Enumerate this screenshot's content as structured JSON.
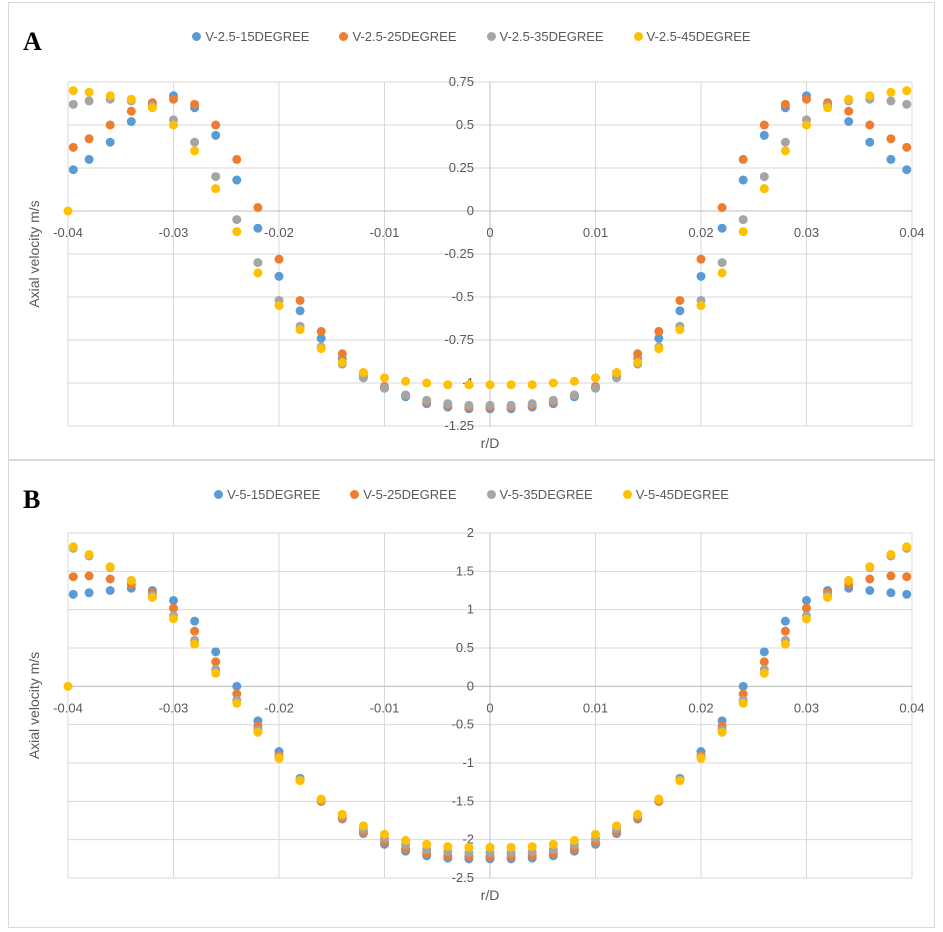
{
  "chart_data": [
    {
      "type": "scatter",
      "panel_label": "A",
      "xlabel": "r/D",
      "ylabel": "Axial velocity m/s",
      "xlim": [
        -0.04,
        0.04
      ],
      "ylim": [
        -1.25,
        0.75
      ],
      "xticks": [
        "-0.04",
        "-0.03",
        "-0.02",
        "-0.01",
        "0",
        "0.01",
        "0.02",
        "0.03",
        "0.04"
      ],
      "yticks": [
        "0.75",
        "0.5",
        "0.25",
        "0",
        "-0.25",
        "-0.5",
        "-0.75",
        "-1",
        "-1.25"
      ],
      "grid": true,
      "legend_position": "top",
      "series": [
        {
          "name": "V-2.5-15DEGREE",
          "color": "#5B9BD5",
          "x": [
            -0.0395,
            -0.038,
            -0.036,
            -0.034,
            -0.032,
            -0.03,
            -0.028,
            -0.026,
            -0.024,
            -0.022,
            -0.02,
            -0.018,
            -0.016,
            -0.014,
            -0.012,
            -0.01,
            -0.008,
            -0.006,
            -0.004,
            -0.002,
            0,
            0.002,
            0.004,
            0.006,
            0.008,
            0.01,
            0.012,
            0.014,
            0.016,
            0.018,
            0.02,
            0.022,
            0.024,
            0.026,
            0.028,
            0.03,
            0.032,
            0.034,
            0.036,
            0.038,
            0.0395
          ],
          "y": [
            0.24,
            0.3,
            0.4,
            0.52,
            0.62,
            0.67,
            0.6,
            0.44,
            0.18,
            -0.1,
            -0.38,
            -0.58,
            -0.74,
            -0.86,
            -0.96,
            -1.03,
            -1.08,
            -1.12,
            -1.14,
            -1.15,
            -1.15,
            -1.15,
            -1.14,
            -1.12,
            -1.08,
            -1.03,
            -0.96,
            -0.86,
            -0.74,
            -0.58,
            -0.38,
            -0.1,
            0.18,
            0.44,
            0.6,
            0.67,
            0.62,
            0.52,
            0.4,
            0.3,
            0.24
          ]
        },
        {
          "name": "V-2.5-25DEGREE",
          "color": "#ED7D31",
          "x": [
            -0.0395,
            -0.038,
            -0.036,
            -0.034,
            -0.032,
            -0.03,
            -0.028,
            -0.026,
            -0.024,
            -0.022,
            -0.02,
            -0.018,
            -0.016,
            -0.014,
            -0.012,
            -0.01,
            -0.008,
            -0.006,
            -0.004,
            -0.002,
            0,
            0.002,
            0.004,
            0.006,
            0.008,
            0.01,
            0.012,
            0.014,
            0.016,
            0.018,
            0.02,
            0.022,
            0.024,
            0.026,
            0.028,
            0.03,
            0.032,
            0.034,
            0.036,
            0.038,
            0.0395
          ],
          "y": [
            0.37,
            0.42,
            0.5,
            0.58,
            0.63,
            0.65,
            0.62,
            0.5,
            0.3,
            0.02,
            -0.28,
            -0.52,
            -0.7,
            -0.83,
            -0.94,
            -1.02,
            -1.07,
            -1.11,
            -1.13,
            -1.14,
            -1.14,
            -1.14,
            -1.13,
            -1.11,
            -1.07,
            -1.02,
            -0.94,
            -0.83,
            -0.7,
            -0.52,
            -0.28,
            0.02,
            0.3,
            0.5,
            0.62,
            0.65,
            0.63,
            0.58,
            0.5,
            0.42,
            0.37
          ]
        },
        {
          "name": "V-2.5-35DEGREE",
          "color": "#A5A5A5",
          "x": [
            -0.0395,
            -0.038,
            -0.036,
            -0.034,
            -0.032,
            -0.03,
            -0.028,
            -0.026,
            -0.024,
            -0.022,
            -0.02,
            -0.018,
            -0.016,
            -0.014,
            -0.012,
            -0.01,
            -0.008,
            -0.006,
            -0.004,
            -0.002,
            0,
            0.002,
            0.004,
            0.006,
            0.008,
            0.01,
            0.012,
            0.014,
            0.016,
            0.018,
            0.02,
            0.022,
            0.024,
            0.026,
            0.028,
            0.03,
            0.032,
            0.034,
            0.036,
            0.038,
            0.0395
          ],
          "y": [
            0.62,
            0.64,
            0.65,
            0.64,
            0.61,
            0.53,
            0.4,
            0.2,
            -0.05,
            -0.3,
            -0.52,
            -0.67,
            -0.79,
            -0.89,
            -0.97,
            -1.03,
            -1.07,
            -1.1,
            -1.12,
            -1.13,
            -1.13,
            -1.13,
            -1.12,
            -1.1,
            -1.07,
            -1.03,
            -0.97,
            -0.89,
            -0.79,
            -0.67,
            -0.52,
            -0.3,
            -0.05,
            0.2,
            0.4,
            0.53,
            0.61,
            0.64,
            0.65,
            0.64,
            0.62
          ]
        },
        {
          "name": "V-2.5-45DEGREE",
          "color": "#FFC000",
          "x": [
            -0.0395,
            -0.038,
            -0.036,
            -0.034,
            -0.032,
            -0.03,
            -0.028,
            -0.026,
            -0.024,
            -0.022,
            -0.02,
            -0.018,
            -0.016,
            -0.014,
            -0.012,
            -0.01,
            -0.008,
            -0.006,
            -0.004,
            -0.002,
            0,
            0.002,
            0.004,
            0.006,
            0.008,
            0.01,
            0.012,
            0.014,
            0.016,
            0.018,
            0.02,
            0.022,
            0.024,
            0.026,
            0.028,
            0.03,
            0.032,
            0.034,
            0.036,
            0.038,
            0.0395
          ],
          "y": [
            0.7,
            0.69,
            0.67,
            0.65,
            0.6,
            0.5,
            0.35,
            0.13,
            -0.12,
            -0.36,
            -0.55,
            -0.69,
            -0.8,
            -0.88,
            -0.94,
            -0.97,
            -0.99,
            -1.0,
            -1.01,
            -1.01,
            -1.01,
            -1.01,
            -1.01,
            -1.0,
            -0.99,
            -0.97,
            -0.94,
            -0.88,
            -0.8,
            -0.69,
            -0.55,
            -0.36,
            -0.12,
            0.13,
            0.35,
            0.5,
            0.6,
            0.65,
            0.67,
            0.69,
            0.7
          ]
        }
      ],
      "extra_points": [
        {
          "x": -0.04,
          "y": 0
        }
      ]
    },
    {
      "type": "scatter",
      "panel_label": "B",
      "xlabel": "r/D",
      "ylabel": "Axial velocity m/s",
      "xlim": [
        -0.04,
        0.04
      ],
      "ylim": [
        -2.5,
        2
      ],
      "xticks": [
        "-0.04",
        "-0.03",
        "-0.02",
        "-0.01",
        "0",
        "0.01",
        "0.02",
        "0.03",
        "0.04"
      ],
      "yticks": [
        "2",
        "1.5",
        "1",
        "0.5",
        "0",
        "-0.5",
        "-1",
        "-1.5",
        "-2",
        "-2.5"
      ],
      "grid": true,
      "legend_position": "top",
      "series": [
        {
          "name": "V-5-15DEGREE",
          "color": "#5B9BD5",
          "x": [
            -0.0395,
            -0.038,
            -0.036,
            -0.034,
            -0.032,
            -0.03,
            -0.028,
            -0.026,
            -0.024,
            -0.022,
            -0.02,
            -0.018,
            -0.016,
            -0.014,
            -0.012,
            -0.01,
            -0.008,
            -0.006,
            -0.004,
            -0.002,
            0,
            0.002,
            0.004,
            0.006,
            0.008,
            0.01,
            0.012,
            0.014,
            0.016,
            0.018,
            0.02,
            0.022,
            0.024,
            0.026,
            0.028,
            0.03,
            0.032,
            0.034,
            0.036,
            0.038,
            0.0395
          ],
          "y": [
            1.2,
            1.22,
            1.25,
            1.28,
            1.25,
            1.12,
            0.85,
            0.45,
            0.0,
            -0.45,
            -0.85,
            -1.2,
            -1.5,
            -1.73,
            -1.92,
            -2.06,
            -2.15,
            -2.21,
            -2.24,
            -2.25,
            -2.25,
            -2.25,
            -2.24,
            -2.21,
            -2.15,
            -2.06,
            -1.92,
            -1.73,
            -1.5,
            -1.2,
            -0.85,
            -0.45,
            0.0,
            0.45,
            0.85,
            1.12,
            1.25,
            1.28,
            1.25,
            1.22,
            1.2
          ]
        },
        {
          "name": "V-5-25DEGREE",
          "color": "#ED7D31",
          "x": [
            -0.0395,
            -0.038,
            -0.036,
            -0.034,
            -0.032,
            -0.03,
            -0.028,
            -0.026,
            -0.024,
            -0.022,
            -0.02,
            -0.018,
            -0.016,
            -0.014,
            -0.012,
            -0.01,
            -0.008,
            -0.006,
            -0.004,
            -0.002,
            0,
            0.002,
            0.004,
            0.006,
            0.008,
            0.01,
            0.012,
            0.014,
            0.016,
            0.018,
            0.02,
            0.022,
            0.024,
            0.026,
            0.028,
            0.03,
            0.032,
            0.034,
            0.036,
            0.038,
            0.0395
          ],
          "y": [
            1.43,
            1.44,
            1.4,
            1.33,
            1.22,
            1.02,
            0.72,
            0.32,
            -0.1,
            -0.52,
            -0.9,
            -1.22,
            -1.5,
            -1.72,
            -1.9,
            -2.03,
            -2.12,
            -2.18,
            -2.21,
            -2.22,
            -2.22,
            -2.22,
            -2.21,
            -2.18,
            -2.12,
            -2.03,
            -1.9,
            -1.72,
            -1.5,
            -1.22,
            -0.9,
            -0.52,
            -0.1,
            0.32,
            0.72,
            1.02,
            1.22,
            1.33,
            1.4,
            1.44,
            1.43
          ]
        },
        {
          "name": "V-5-35DEGREE",
          "color": "#A5A5A5",
          "x": [
            -0.0395,
            -0.038,
            -0.036,
            -0.034,
            -0.032,
            -0.03,
            -0.028,
            -0.026,
            -0.024,
            -0.022,
            -0.02,
            -0.018,
            -0.016,
            -0.014,
            -0.012,
            -0.01,
            -0.008,
            -0.006,
            -0.004,
            -0.002,
            0,
            0.002,
            0.004,
            0.006,
            0.008,
            0.01,
            0.012,
            0.014,
            0.016,
            0.018,
            0.02,
            0.022,
            0.024,
            0.026,
            0.028,
            0.03,
            0.032,
            0.034,
            0.036,
            0.038,
            0.0395
          ],
          "y": [
            1.8,
            1.7,
            1.55,
            1.38,
            1.18,
            0.92,
            0.6,
            0.22,
            -0.18,
            -0.57,
            -0.92,
            -1.22,
            -1.48,
            -1.69,
            -1.86,
            -1.98,
            -2.07,
            -2.13,
            -2.16,
            -2.17,
            -2.17,
            -2.17,
            -2.16,
            -2.13,
            -2.07,
            -1.98,
            -1.86,
            -1.69,
            -1.48,
            -1.22,
            -0.92,
            -0.57,
            -0.18,
            0.22,
            0.6,
            0.92,
            1.18,
            1.38,
            1.55,
            1.7,
            1.8
          ]
        },
        {
          "name": "V-5-45DEGREE",
          "color": "#FFC000",
          "x": [
            -0.0395,
            -0.038,
            -0.036,
            -0.034,
            -0.032,
            -0.03,
            -0.028,
            -0.026,
            -0.024,
            -0.022,
            -0.02,
            -0.018,
            -0.016,
            -0.014,
            -0.012,
            -0.01,
            -0.008,
            -0.006,
            -0.004,
            -0.002,
            0,
            0.002,
            0.004,
            0.006,
            0.008,
            0.01,
            0.012,
            0.014,
            0.016,
            0.018,
            0.02,
            0.022,
            0.024,
            0.026,
            0.028,
            0.03,
            0.032,
            0.034,
            0.036,
            0.038,
            0.0395
          ],
          "y": [
            1.82,
            1.72,
            1.56,
            1.38,
            1.16,
            0.88,
            0.55,
            0.17,
            -0.22,
            -0.6,
            -0.94,
            -1.23,
            -1.47,
            -1.67,
            -1.82,
            -1.93,
            -2.01,
            -2.06,
            -2.09,
            -2.1,
            -2.1,
            -2.1,
            -2.09,
            -2.06,
            -2.01,
            -1.93,
            -1.82,
            -1.67,
            -1.47,
            -1.23,
            -0.94,
            -0.6,
            -0.22,
            0.17,
            0.55,
            0.88,
            1.16,
            1.38,
            1.56,
            1.72,
            1.82
          ]
        }
      ],
      "extra_points": [
        {
          "x": -0.04,
          "y": 0
        }
      ]
    }
  ]
}
